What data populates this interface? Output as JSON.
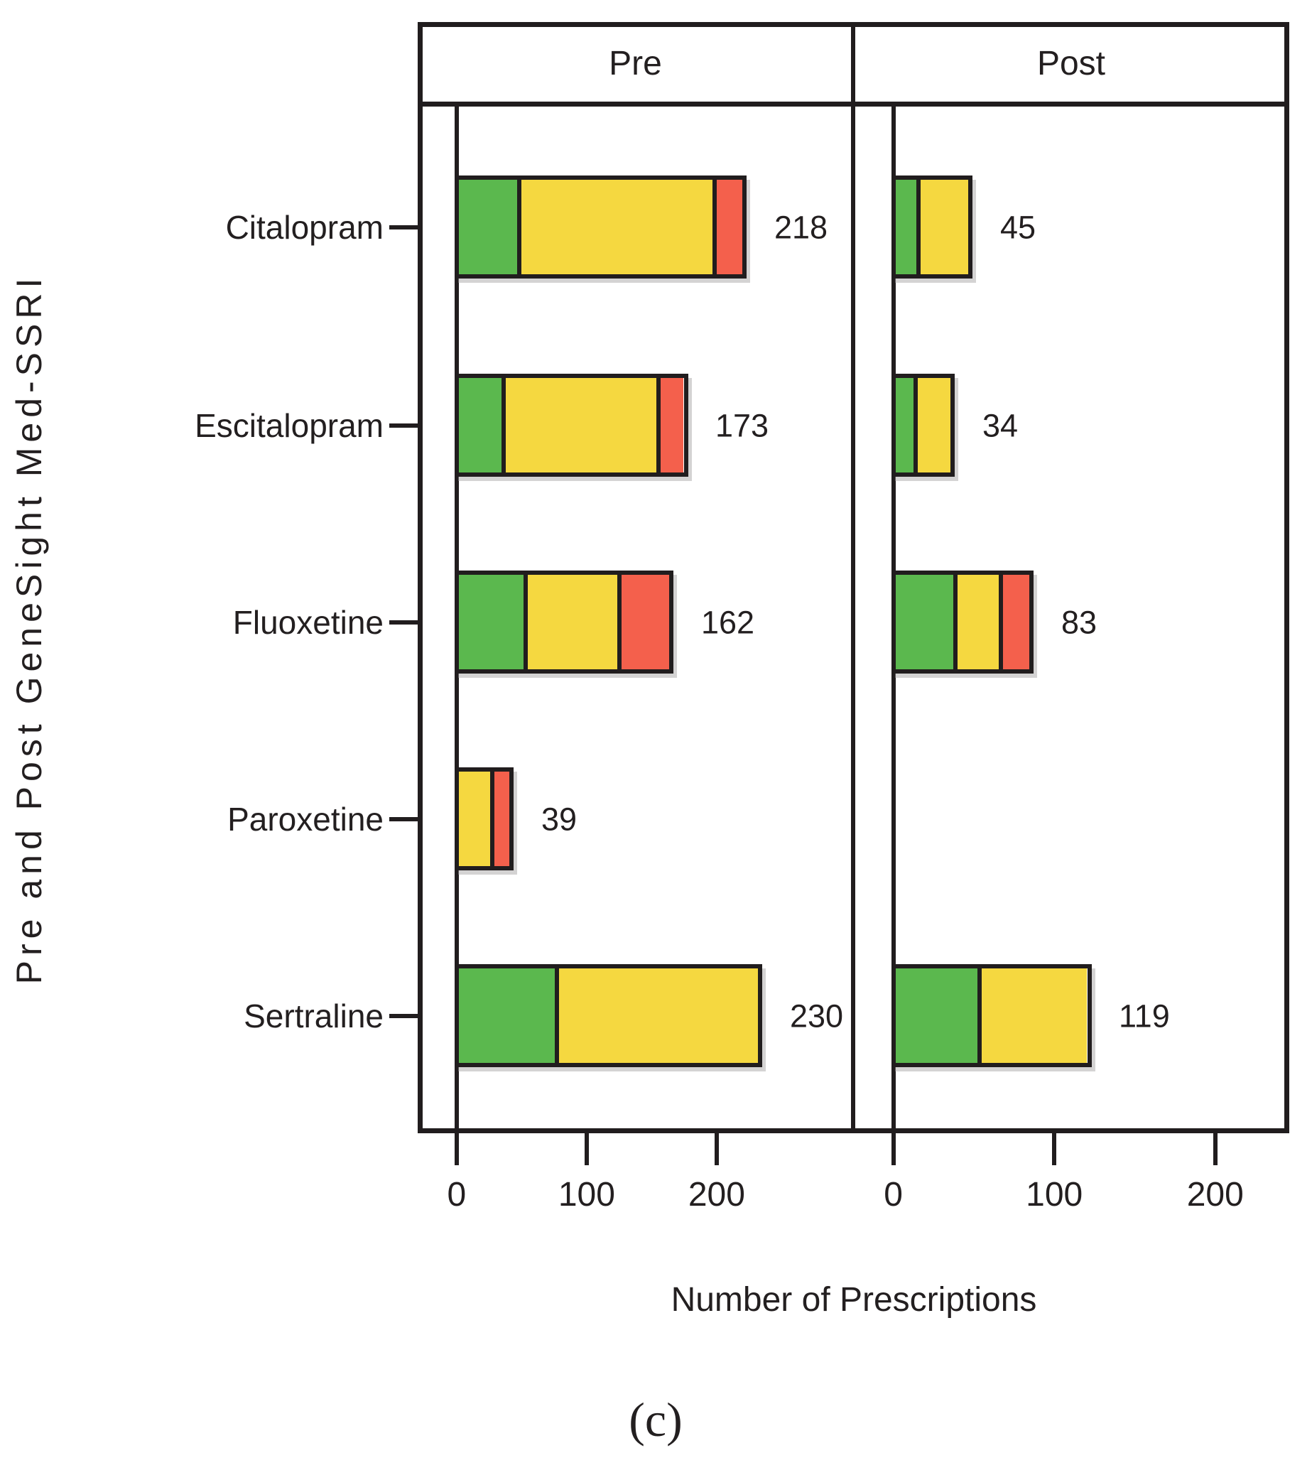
{
  "labels": {
    "caption": "(c)"
  },
  "chart_data": {
    "type": "bar",
    "orientation": "horizontal",
    "stacked": true,
    "title": "",
    "xlabel": "Number of Prescriptions",
    "ylabel": "Pre and Post GeneSight Med-SSRI",
    "grid": false,
    "legend": "none",
    "categories": [
      "Citalopram",
      "Escitalopram",
      "Fluoxetine",
      "Paroxetine",
      "Sertraline"
    ],
    "segment_order": [
      "green",
      "yellow",
      "red"
    ],
    "colors": {
      "green": "#5bb84e",
      "yellow": "#f5d840",
      "red": "#f4604c",
      "line": "#211d1e",
      "text": "#231f20"
    },
    "panels": [
      {
        "label": "Pre",
        "xlim": [
          -30,
          305
        ],
        "ticks": [
          0,
          100,
          200
        ],
        "totals": [
          218,
          173,
          162,
          39,
          230
        ],
        "series": [
          {
            "name": "green",
            "values": [
              45,
              33,
              50,
              0,
              74
            ]
          },
          {
            "name": "yellow",
            "values": [
              150,
              119,
              72,
              24,
              156
            ]
          },
          {
            "name": "red",
            "values": [
              23,
              21,
              40,
              15,
              0
            ]
          }
        ]
      },
      {
        "label": "Post",
        "xlim": [
          -25,
          246
        ],
        "ticks": [
          0,
          100,
          200
        ],
        "totals": [
          45,
          34,
          83,
          0,
          119
        ],
        "series": [
          {
            "name": "green",
            "values": [
              13,
              11,
              36,
              0,
              51
            ]
          },
          {
            "name": "yellow",
            "values": [
              32,
              23,
              28,
              0,
              68
            ]
          },
          {
            "name": "red",
            "values": [
              0,
              0,
              19,
              0,
              0
            ]
          }
        ]
      }
    ]
  }
}
